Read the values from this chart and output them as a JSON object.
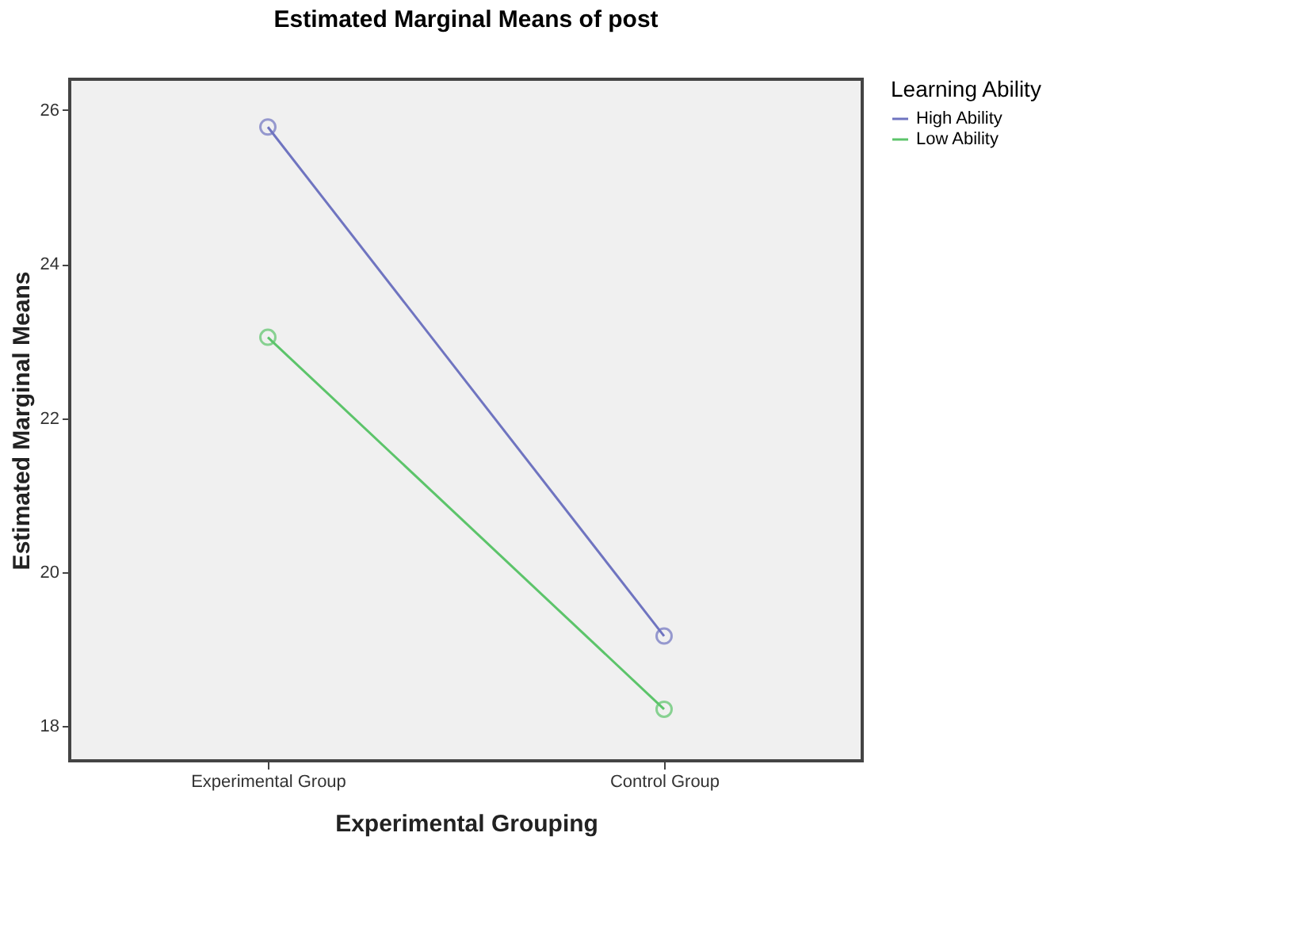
{
  "chart_data": {
    "type": "line",
    "title": "Estimated Marginal Means of post",
    "xlabel": "Experimental Grouping",
    "ylabel": "Estimated Marginal Means",
    "legend_title": "Learning Ability",
    "categories": [
      "Experimental Group",
      "Control Group"
    ],
    "series": [
      {
        "name": "High Ability",
        "color": "#6f74c0",
        "values": [
          25.78,
          19.17
        ]
      },
      {
        "name": "Low Ability",
        "color": "#5cc46a",
        "values": [
          23.05,
          18.22
        ]
      }
    ],
    "ylim": [
      17.55,
      26.4
    ],
    "yticks": [
      18,
      20,
      22,
      24,
      26
    ],
    "grid": false,
    "legend": "top right",
    "marker": "circle",
    "line_style": "solid"
  }
}
